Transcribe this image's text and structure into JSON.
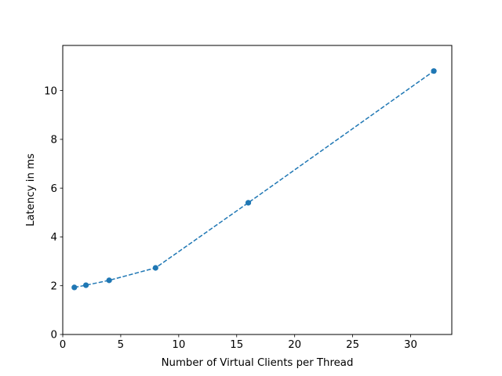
{
  "chart_data": {
    "type": "line",
    "title": "",
    "xlabel": "Number of Virtual Clients per Thread",
    "ylabel": "Latency in ms",
    "xlim": [
      0,
      33.55
    ],
    "ylim": [
      0,
      11.85
    ],
    "x_ticks": [
      0,
      5,
      10,
      15,
      20,
      25,
      30
    ],
    "y_ticks": [
      0,
      2,
      4,
      6,
      8,
      10
    ],
    "grid": false,
    "series": [
      {
        "x": [
          1,
          2,
          4,
          8,
          16,
          32
        ],
        "y": [
          1.93,
          2.02,
          2.22,
          2.73,
          5.4,
          10.8
        ],
        "line_style": "dashed",
        "marker": "circle",
        "color": "#1f77b4"
      }
    ]
  }
}
